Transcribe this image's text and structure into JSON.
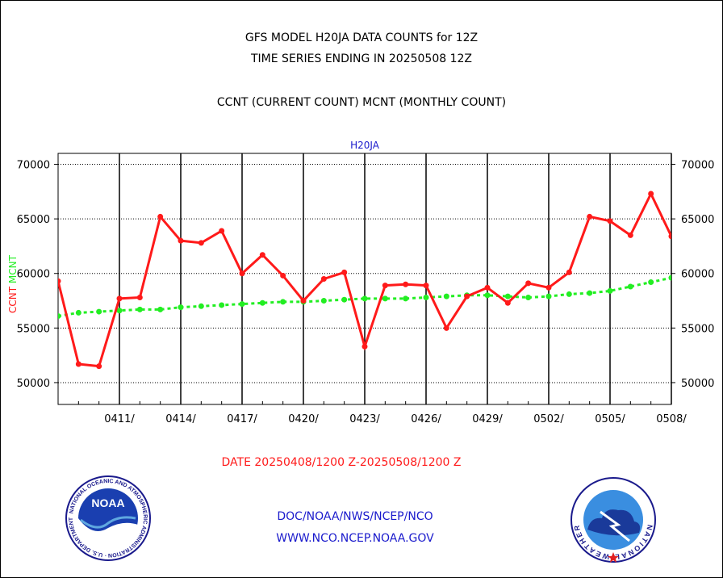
{
  "titles": {
    "line1": "GFS MODEL H20JA DATA COUNTS for 12Z",
    "line2": "TIME SERIES ENDING IN 20250508 12Z",
    "line3": "CCNT (CURRENT COUNT) MCNT (MONTHLY COUNT)"
  },
  "footer": {
    "date_range": "DATE 20250408/1200 Z-20250508/1200 Z",
    "org_path": "DOC/NOAA/NWS/NCEP/NCO",
    "website": "WWW.NCO.NCEP.NOAA.GOV",
    "logo_left_text": "NOAA",
    "logo_left_ring": "NATIONAL OCEANIC AND ATMOSPHERIC ADMINISTRATION · U.S. DEPARTMENT OF COMMERCE",
    "logo_right_ring": "NATIONAL WEATHER SERVICE"
  },
  "colors": {
    "ccnt": "#ff1a1a",
    "mcnt": "#22ee22",
    "axis_title": "#1a1acc"
  },
  "chart_data": {
    "type": "line",
    "title": "H20JA",
    "ylabel_parts": [
      "CCNT",
      "MCNT"
    ],
    "ylim": [
      48000,
      71000
    ],
    "yticks": [
      50000,
      55000,
      60000,
      65000,
      70000
    ],
    "ytick_labels": [
      "50000",
      "55000",
      "60000",
      "65000",
      "70000"
    ],
    "xlim": [
      0,
      30
    ],
    "xticks": [
      3,
      6,
      9,
      12,
      15,
      18,
      21,
      24,
      27,
      30
    ],
    "xtick_labels": [
      "0411/",
      "0414/",
      "0417/",
      "0420/",
      "0423/",
      "0426/",
      "0429/",
      "0502/",
      "0505/",
      "0508/"
    ],
    "grid": true,
    "series": [
      {
        "name": "CCNT",
        "values": [
          59300,
          51700,
          51500,
          57700,
          57800,
          65200,
          63000,
          62800,
          63900,
          60000,
          61700,
          59800,
          57500,
          59500,
          60100,
          53300,
          58900,
          59000,
          58900,
          55000,
          57900,
          58700,
          57300,
          59100,
          58700,
          60100,
          65200,
          64800,
          63500,
          67300,
          63400
        ]
      },
      {
        "name": "MCNT",
        "values": [
          56100,
          56400,
          56500,
          56600,
          56700,
          56700,
          56900,
          57000,
          57100,
          57200,
          57300,
          57400,
          57400,
          57500,
          57600,
          57700,
          57700,
          57700,
          57800,
          57900,
          58000,
          58000,
          57900,
          57800,
          57900,
          58100,
          58200,
          58400,
          58800,
          59200,
          59600
        ]
      }
    ]
  }
}
